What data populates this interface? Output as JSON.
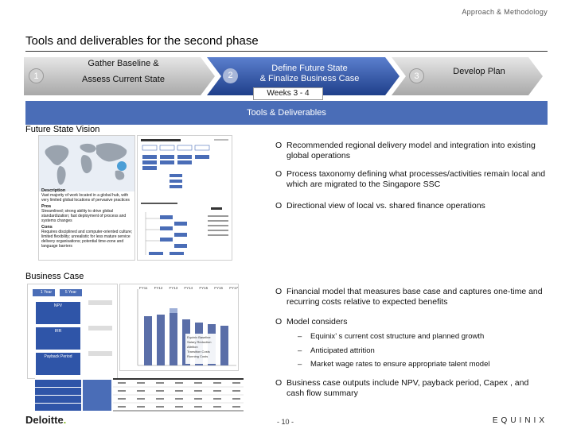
{
  "header": {
    "section": "Approach & Methodology"
  },
  "title": "Tools and deliverables for the second phase",
  "phases": [
    {
      "number": "1",
      "label_line1": "Gather Baseline &",
      "label_line2": "Assess Current State",
      "active": false
    },
    {
      "number": "2",
      "label_line1": "Define Future State",
      "label_line2": "& Finalize Business Case",
      "active": true
    },
    {
      "number": "3",
      "label_line1": "Develop Plan",
      "label_line2": "",
      "active": false
    }
  ],
  "weeks": "Weeks 3 - 4",
  "tools_bar": "Tools & Deliverables",
  "sections": {
    "future_state": {
      "label": "Future State Vision",
      "thumb": {
        "description_label": "Description",
        "description_text": "Vast majority of work located in a global hub, with very limited global locations of pervasive practices",
        "pros_label": "Pros",
        "pros_text": "Streamlined; strong ability to drive global standardization; fast deployment of process and systems changes",
        "cons_label": "Cons",
        "cons_text": "Requires disciplined and computer-oriented culture; limited flexibility; unrealistic for less mature service delivery organisations; potential time-zone and language barriers"
      },
      "bullets": [
        "Recommended regional delivery model and integration into existing global operations",
        "Process taxonomy defining what processes/activities remain local and which are migrated to the Singapore SSC",
        "Directional view of local vs. shared finance operations"
      ]
    },
    "business_case": {
      "label": "Business Case",
      "thumb": {
        "years": [
          "FY11",
          "FY12",
          "FY13",
          "FY14",
          "FY15",
          "FY16",
          "FY17"
        ],
        "legend": [
          "Equinix Baseline",
          "Salary Reduction",
          "Attrition",
          "Transition Costs",
          "Running Costs"
        ],
        "left_labels": [
          "1 Year",
          "5 Year",
          "NPV",
          "IRR",
          "Payback Period"
        ]
      },
      "bullets": [
        "Financial model that measures base case and captures one-time and recurring costs relative to expected benefits",
        "Model considers",
        "Business case outputs include NPV, payback period, Capex , and cash flow summary"
      ],
      "sub_bullets": [
        "Equinix’ s current cost structure and planned growth",
        "Anticipated attrition",
        "Market wage rates to ensure appropriate talent model"
      ]
    }
  },
  "bullet_mark": "O",
  "sub_mark": "–",
  "footer": {
    "logo": "Deloitte",
    "logo_dot": ".",
    "page": "- 10 -",
    "partner_logo": "EQUINIX",
    "partner_logo_highlight": "Q"
  },
  "colors": {
    "accent_blue": "#4a6db7",
    "chevron_gray": "#b7b7b7",
    "chevron_active": "#2f55a8",
    "deloitte_green": "#86bc25"
  }
}
